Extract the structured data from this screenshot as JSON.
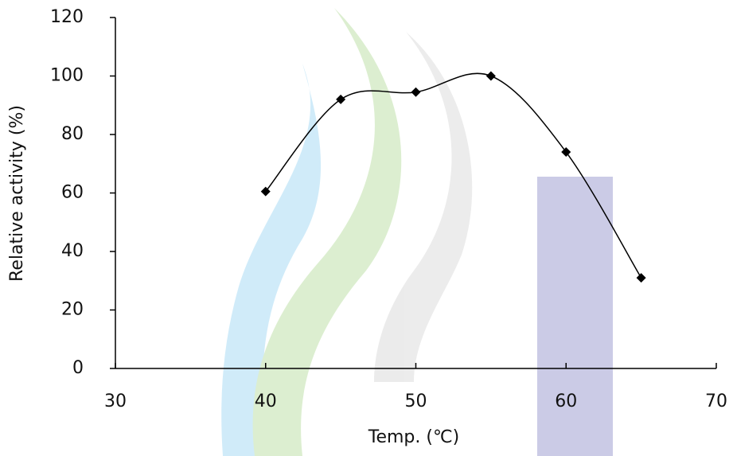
{
  "chart_data": {
    "type": "line",
    "x_label": "Temp. (℃)",
    "y_label": "Relative activity (%)",
    "x": [
      40,
      45,
      50,
      55,
      60,
      65
    ],
    "values": [
      60.5,
      92,
      94.5,
      100,
      74,
      31
    ],
    "color": "#000000",
    "smooth": true,
    "marker": "diamond",
    "xlim": [
      30,
      70
    ],
    "xticks": [
      30,
      40,
      50,
      60,
      70
    ],
    "ylim": [
      0,
      120
    ],
    "yticks": [
      0,
      20,
      40,
      60,
      80,
      100,
      120
    ]
  }
}
